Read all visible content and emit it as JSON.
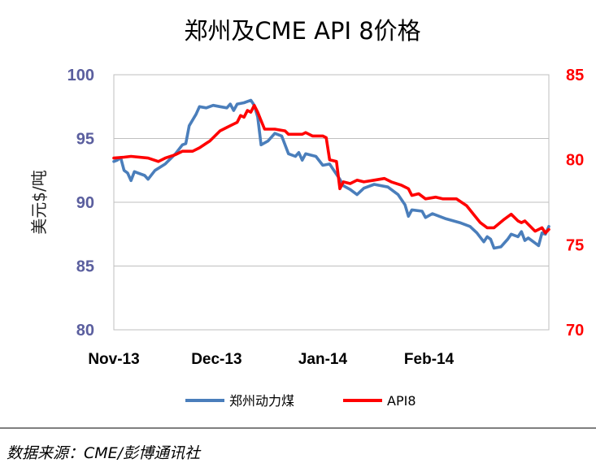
{
  "chart_data": {
    "type": "line",
    "title": "郑州及CME API 8价格",
    "ylabel": "美元$/吨",
    "y_left": {
      "lim": [
        80,
        100
      ],
      "ticks": [
        80,
        85,
        90,
        95,
        100
      ],
      "color": "#5A5E9E"
    },
    "y_right": {
      "lim": [
        70,
        85
      ],
      "ticks": [
        70,
        75,
        80,
        85
      ],
      "color": "#FF0000"
    },
    "x_range": [
      "2013-11-01",
      "2014-03-08"
    ],
    "x_ticks": [
      {
        "date": "2013-11-01",
        "label": "Nov-13"
      },
      {
        "date": "2013-12-01",
        "label": "Dec-13"
      },
      {
        "date": "2014-01-01",
        "label": "Jan-14"
      },
      {
        "date": "2014-02-01",
        "label": "Feb-14"
      }
    ],
    "grid": true,
    "legend": "bottom",
    "series": [
      {
        "name": "郑州动力煤",
        "axis": "left",
        "color": "#4A7EBB",
        "points": [
          [
            "2013-11-01",
            93.2
          ],
          [
            "2013-11-02",
            93.3
          ],
          [
            "2013-11-03",
            93.5
          ],
          [
            "2013-11-04",
            92.5
          ],
          [
            "2013-11-05",
            92.3
          ],
          [
            "2013-11-06",
            91.7
          ],
          [
            "2013-11-07",
            92.4
          ],
          [
            "2013-11-08",
            92.3
          ],
          [
            "2013-11-10",
            92.1
          ],
          [
            "2013-11-11",
            91.8
          ],
          [
            "2013-11-13",
            92.5
          ],
          [
            "2013-11-16",
            93.0
          ],
          [
            "2013-11-19",
            93.8
          ],
          [
            "2013-11-21",
            94.5
          ],
          [
            "2013-11-22",
            94.6
          ],
          [
            "2013-11-23",
            96.0
          ],
          [
            "2013-11-25",
            96.9
          ],
          [
            "2013-11-26",
            97.5
          ],
          [
            "2013-11-28",
            97.4
          ],
          [
            "2013-11-30",
            97.6
          ],
          [
            "2013-12-02",
            97.5
          ],
          [
            "2013-12-04",
            97.4
          ],
          [
            "2013-12-05",
            97.7
          ],
          [
            "2013-12-06",
            97.2
          ],
          [
            "2013-12-07",
            97.7
          ],
          [
            "2013-12-09",
            97.8
          ],
          [
            "2013-12-11",
            98.0
          ],
          [
            "2013-12-12",
            97.6
          ],
          [
            "2013-12-13",
            96.7
          ],
          [
            "2013-12-14",
            94.5
          ],
          [
            "2013-12-16",
            94.8
          ],
          [
            "2013-12-18",
            95.4
          ],
          [
            "2013-12-20",
            95.2
          ],
          [
            "2013-12-22",
            93.8
          ],
          [
            "2013-12-24",
            93.6
          ],
          [
            "2013-12-25",
            93.9
          ],
          [
            "2013-12-26",
            93.3
          ],
          [
            "2013-12-27",
            93.8
          ],
          [
            "2013-12-30",
            93.6
          ],
          [
            "2014-01-01",
            92.9
          ],
          [
            "2014-01-03",
            93.0
          ],
          [
            "2014-01-04",
            92.6
          ],
          [
            "2014-01-06",
            91.8
          ],
          [
            "2014-01-07",
            91.3
          ],
          [
            "2014-01-09",
            91.0
          ],
          [
            "2014-01-11",
            90.6
          ],
          [
            "2014-01-13",
            91.1
          ],
          [
            "2014-01-16",
            91.4
          ],
          [
            "2014-01-20",
            91.2
          ],
          [
            "2014-01-23",
            90.6
          ],
          [
            "2014-01-25",
            89.8
          ],
          [
            "2014-01-26",
            88.9
          ],
          [
            "2014-01-27",
            89.4
          ],
          [
            "2014-01-30",
            89.3
          ],
          [
            "2014-01-31",
            88.8
          ],
          [
            "2014-02-02",
            89.1
          ],
          [
            "2014-02-06",
            88.7
          ],
          [
            "2014-02-10",
            88.4
          ],
          [
            "2014-02-13",
            88.1
          ],
          [
            "2014-02-15",
            87.6
          ],
          [
            "2014-02-17",
            86.9
          ],
          [
            "2014-02-18",
            87.3
          ],
          [
            "2014-02-19",
            87.1
          ],
          [
            "2014-02-20",
            86.4
          ],
          [
            "2014-02-22",
            86.5
          ],
          [
            "2014-02-24",
            87.1
          ],
          [
            "2014-02-25",
            87.5
          ],
          [
            "2014-02-27",
            87.3
          ],
          [
            "2014-02-28",
            87.7
          ],
          [
            "2014-03-01",
            87.0
          ],
          [
            "2014-03-02",
            87.2
          ],
          [
            "2014-03-04",
            86.8
          ],
          [
            "2014-03-05",
            86.6
          ],
          [
            "2014-03-06",
            87.6
          ],
          [
            "2014-03-07",
            87.5
          ],
          [
            "2014-03-08",
            88.1
          ]
        ]
      },
      {
        "name": "API8",
        "axis": "right",
        "color": "#FF0000",
        "points": [
          [
            "2013-11-01",
            80.1
          ],
          [
            "2013-11-04",
            80.15
          ],
          [
            "2013-11-06",
            80.2
          ],
          [
            "2013-11-11",
            80.1
          ],
          [
            "2013-11-14",
            79.9
          ],
          [
            "2013-11-16",
            80.1
          ],
          [
            "2013-11-19",
            80.3
          ],
          [
            "2013-11-21",
            80.5
          ],
          [
            "2013-11-24",
            80.5
          ],
          [
            "2013-11-26",
            80.7
          ],
          [
            "2013-11-29",
            81.1
          ],
          [
            "2013-12-02",
            81.7
          ],
          [
            "2013-12-04",
            81.9
          ],
          [
            "2013-12-06",
            82.1
          ],
          [
            "2013-12-07",
            82.2
          ],
          [
            "2013-12-08",
            82.6
          ],
          [
            "2013-12-09",
            82.5
          ],
          [
            "2013-12-10",
            82.9
          ],
          [
            "2013-12-11",
            82.8
          ],
          [
            "2013-12-12",
            83.2
          ],
          [
            "2013-12-13",
            82.8
          ],
          [
            "2013-12-14",
            82.3
          ],
          [
            "2013-12-15",
            81.8
          ],
          [
            "2013-12-18",
            81.8
          ],
          [
            "2013-12-21",
            81.7
          ],
          [
            "2013-12-22",
            81.5
          ],
          [
            "2013-12-26",
            81.5
          ],
          [
            "2013-12-27",
            81.6
          ],
          [
            "2013-12-29",
            81.4
          ],
          [
            "2014-01-01",
            81.4
          ],
          [
            "2014-01-02",
            81.3
          ],
          [
            "2014-01-03",
            80.0
          ],
          [
            "2014-01-05",
            79.9
          ],
          [
            "2014-01-06",
            78.3
          ],
          [
            "2014-01-07",
            78.7
          ],
          [
            "2014-01-09",
            78.6
          ],
          [
            "2014-01-11",
            78.8
          ],
          [
            "2014-01-13",
            78.7
          ],
          [
            "2014-01-16",
            78.8
          ],
          [
            "2014-01-19",
            78.9
          ],
          [
            "2014-01-21",
            78.7
          ],
          [
            "2014-01-24",
            78.5
          ],
          [
            "2014-01-26",
            78.3
          ],
          [
            "2014-01-27",
            77.9
          ],
          [
            "2014-01-29",
            78.0
          ],
          [
            "2014-01-31",
            77.7
          ],
          [
            "2014-02-03",
            77.8
          ],
          [
            "2014-02-05",
            77.7
          ],
          [
            "2014-02-09",
            77.7
          ],
          [
            "2014-02-12",
            77.3
          ],
          [
            "2014-02-14",
            76.8
          ],
          [
            "2014-02-16",
            76.3
          ],
          [
            "2014-02-18",
            76.0
          ],
          [
            "2014-02-20",
            76.0
          ],
          [
            "2014-02-23",
            76.5
          ],
          [
            "2014-02-25",
            76.8
          ],
          [
            "2014-02-27",
            76.4
          ],
          [
            "2014-02-28",
            76.3
          ],
          [
            "2014-03-01",
            76.4
          ],
          [
            "2014-03-04",
            75.8
          ],
          [
            "2014-03-05",
            75.9
          ],
          [
            "2014-03-06",
            76.0
          ],
          [
            "2014-03-07",
            75.7
          ],
          [
            "2014-03-08",
            75.9
          ]
        ]
      }
    ]
  },
  "source": "数据来源：CME/彭博通讯社"
}
